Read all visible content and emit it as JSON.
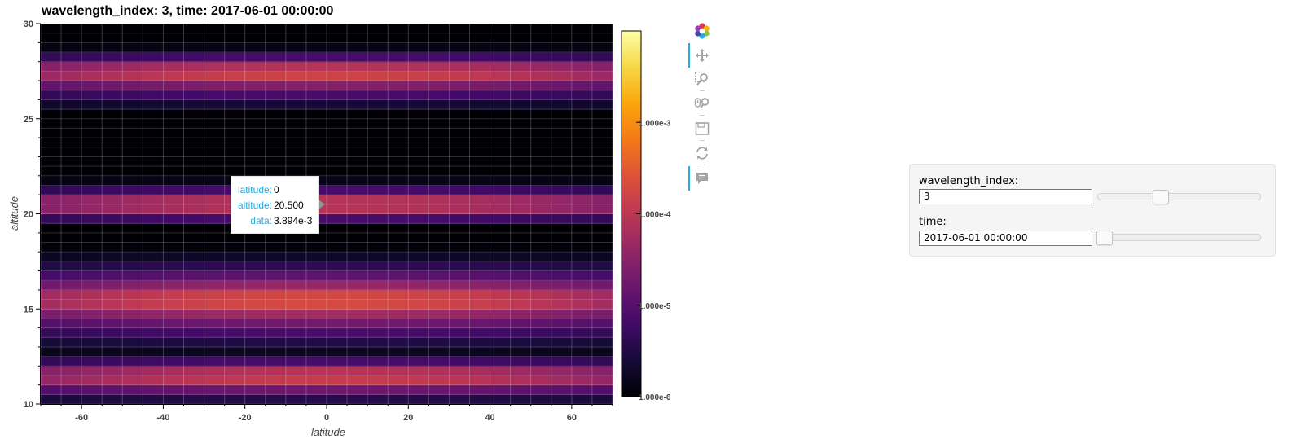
{
  "chart_data": {
    "type": "heatmap",
    "title": "wavelength_index: 3, time: 2017-06-01 00:00:00",
    "xlabel": "latitude",
    "ylabel": "altitude",
    "xlim": [
      -70,
      70
    ],
    "ylim": [
      10,
      30
    ],
    "x_ticks": [
      -60,
      -40,
      -20,
      0,
      20,
      40,
      60
    ],
    "y_ticks": [
      10,
      15,
      20,
      25,
      30
    ],
    "x_step": 5,
    "y_step": 0.5,
    "colormap": "inferno",
    "color_scale": "log",
    "color_range": [
      1e-06,
      0.01
    ],
    "colorbar_ticks": [
      {
        "value": 1e-06,
        "label": "1.000e-6"
      },
      {
        "value": 1e-05,
        "label": "1.000e-5"
      },
      {
        "value": 0.0001,
        "label": "1.000e-4"
      },
      {
        "value": 0.001,
        "label": "1.000e-3"
      }
    ],
    "altitude_bands": [
      {
        "low": 10,
        "high": 12.5,
        "peak_altitude": 11.5,
        "trough_altitude": 13.0
      },
      {
        "low": 12.5,
        "high": 19.5,
        "peak_altitude": 15.5,
        "trough_altitude": 18.5
      },
      {
        "low": 19.5,
        "high": 25.5,
        "peak_altitude": 20.5,
        "trough_altitude": 22.0
      },
      {
        "low": 25.5,
        "high": 30,
        "peak_altitude": 27.5,
        "trough_altitude": 29.0
      }
    ],
    "value_at_peak_center": 0.0039,
    "value_at_trough": 1e-06,
    "grid": true,
    "legend": "colorbar-right"
  },
  "tooltip": {
    "rows": [
      {
        "key": "latitude:",
        "value": "0"
      },
      {
        "key": "altitude:",
        "value": "20.500"
      },
      {
        "key": "data:",
        "value": "3.894e-3"
      }
    ]
  },
  "toolbar": {
    "tools": [
      "bokeh-logo-icon",
      "pan-icon",
      "box-zoom-icon",
      "wheel-zoom-icon",
      "save-icon",
      "reset-icon",
      "hover-icon"
    ]
  },
  "widgets": {
    "wavelength_index": {
      "label": "wavelength_index:",
      "value": "3",
      "fraction": 0.38
    },
    "time": {
      "label": "time:",
      "value": "2017-06-01 00:00:00",
      "fraction": 0.0
    }
  }
}
